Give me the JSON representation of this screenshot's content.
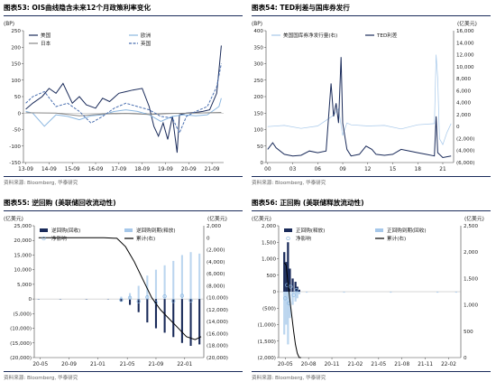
{
  "panels": [
    {
      "id": "p53",
      "title": "图表53:  OIS曲线隐含未来12个月政策利率变化",
      "source": "资料来源: Bloomberg, 华泰研究",
      "chart_data": {
        "type": "line",
        "ylabel": "(BP)",
        "ylim": [
          -150,
          250
        ],
        "y_ticks": [
          -150,
          -100,
          -50,
          0,
          50,
          100,
          150,
          200,
          250
        ],
        "x_ticks": [
          "13-09",
          "14-09",
          "15-09",
          "16-09",
          "17-09",
          "18-09",
          "19-09",
          "20-09",
          "21-09"
        ],
        "legend_position": "top",
        "series": [
          {
            "name": "美国",
            "color": "#1a2b5a",
            "style": "solid",
            "x": [
              2013.7,
              2014.0,
              2014.4,
              2014.7,
              2015.0,
              2015.3,
              2015.7,
              2016.0,
              2016.3,
              2016.7,
              2017.0,
              2017.3,
              2017.7,
              2018.0,
              2018.3,
              2018.7,
              2019.0,
              2019.2,
              2019.4,
              2019.6,
              2019.8,
              2020.0,
              2020.2,
              2020.3,
              2020.6,
              2021.0,
              2021.3,
              2021.6,
              2021.9,
              2022.0,
              2022.1
            ],
            "y": [
              12,
              30,
              50,
              75,
              60,
              90,
              30,
              50,
              25,
              15,
              45,
              35,
              60,
              65,
              70,
              75,
              20,
              -40,
              -70,
              -30,
              -80,
              -10,
              -120,
              -5,
              0,
              2,
              5,
              10,
              60,
              130,
              205
            ]
          },
          {
            "name": "欧洲",
            "color": "#8ab6e0",
            "style": "solid",
            "x": [
              2013.7,
              2014.0,
              2014.5,
              2015.0,
              2015.5,
              2016.0,
              2016.5,
              2017.0,
              2017.5,
              2018.0,
              2018.5,
              2019.0,
              2019.5,
              2020.0,
              2020.5,
              2021.0,
              2021.5,
              2022.0,
              2022.1
            ],
            "y": [
              5,
              0,
              -40,
              -5,
              -10,
              -20,
              -8,
              -5,
              5,
              10,
              5,
              -5,
              -25,
              -10,
              -5,
              -8,
              -5,
              20,
              45
            ]
          },
          {
            "name": "日本",
            "color": "#888888",
            "style": "solid",
            "x": [
              2013.7,
              2015.0,
              2016.0,
              2017.0,
              2018.0,
              2019.0,
              2020.0,
              2021.0,
              2022.1
            ],
            "y": [
              1,
              0,
              -8,
              -3,
              -1,
              -4,
              -1,
              0,
              2
            ]
          },
          {
            "name": "英国",
            "color": "#4a6fb0",
            "style": "dashed",
            "x": [
              2013.7,
              2014.0,
              2014.5,
              2015.0,
              2015.5,
              2016.0,
              2016.5,
              2017.0,
              2017.5,
              2018.0,
              2018.5,
              2019.0,
              2019.5,
              2020.0,
              2020.3,
              2020.6,
              2021.0,
              2021.5,
              2021.9,
              2022.1
            ],
            "y": [
              30,
              50,
              65,
              20,
              30,
              5,
              -30,
              -10,
              15,
              30,
              20,
              10,
              -10,
              -15,
              -60,
              -10,
              5,
              20,
              80,
              150
            ]
          }
        ]
      }
    },
    {
      "id": "p54",
      "title": "图表54:  TED利差与国库券发行",
      "source": "资料来源: Bloomberg, 华泰研究",
      "chart_data": {
        "type": "line",
        "ylabel": "(BP)",
        "ylabel_right": "(亿美元)",
        "ylim": [
          0,
          400
        ],
        "ylim_right": [
          -6000,
          16000
        ],
        "y_ticks": [
          0,
          50,
          100,
          150,
          200,
          250,
          300,
          350,
          400
        ],
        "y_ticks_right": [
          "(6,000)",
          "(4,000)",
          "(2,000)",
          "0",
          "2,000",
          "4,000",
          "6,000",
          "8,000",
          "10,000",
          "12,000",
          "14,000",
          "16,000"
        ],
        "x_ticks": [
          "00",
          "03",
          "06",
          "09",
          "12",
          "15",
          "18",
          "21"
        ],
        "legend_position": "top",
        "series": [
          {
            "name": "美国国库券净发行量(右)",
            "color": "#a6c8ea",
            "axis": "right",
            "x": [
              2000.0,
              2002.0,
              2004.0,
              2006.0,
              2007.5,
              2008.0,
              2008.5,
              2009.0,
              2009.5,
              2010.0,
              2012.0,
              2014.0,
              2016.0,
              2018.0,
              2020.0,
              2020.2,
              2020.4,
              2020.6,
              2021.0,
              2021.5,
              2022.0
            ],
            "y": [
              0,
              200,
              -300,
              100,
              1500,
              2000,
              3000,
              -1500,
              600,
              300,
              100,
              200,
              -400,
              300,
              500,
              12000,
              8000,
              -2000,
              -3000,
              -1000,
              500
            ]
          },
          {
            "name": "TED利差",
            "color": "#1a2b5a",
            "axis": "left",
            "x": [
              2000.0,
              2000.6,
              2001.0,
              2002.0,
              2003.0,
              2004.0,
              2005.0,
              2006.0,
              2007.0,
              2007.6,
              2007.9,
              2008.2,
              2008.5,
              2008.8,
              2009.0,
              2009.5,
              2010.0,
              2011.0,
              2011.8,
              2012.5,
              2013.0,
              2014.0,
              2015.0,
              2016.0,
              2017.0,
              2018.0,
              2019.0,
              2020.0,
              2020.2,
              2020.4,
              2021.0,
              2022.0
            ],
            "y": [
              40,
              60,
              45,
              25,
              20,
              22,
              35,
              30,
              35,
              240,
              140,
              180,
              120,
              320,
              120,
              40,
              20,
              25,
              50,
              40,
              25,
              22,
              25,
              40,
              35,
              30,
              25,
              20,
              140,
              30,
              15,
              20
            ]
          }
        ]
      }
    },
    {
      "id": "p55",
      "title": "图表55:  逆回购 (美联储回收流动性)",
      "source": "资料来源: Bloomberg, 华泰研究",
      "chart_data": {
        "type": "bar",
        "ylabel": "(亿美元)",
        "ylabel_right": "(亿美元)",
        "ylim": [
          -20000,
          25000
        ],
        "ylim_right": [
          -20000,
          2000
        ],
        "y_ticks": [
          "(20,000)",
          "(15,000)",
          "(10,000)",
          "(5,000)",
          "0",
          "5,000",
          "10,000",
          "15,000",
          "20,000",
          "25,000"
        ],
        "y_ticks_right": [
          "(20,000)",
          "(18,000)",
          "(16,000)",
          "(14,000)",
          "(12,000)",
          "(10,000)",
          "(8,000)",
          "(6,000)",
          "(4,000)",
          "(2,000)",
          "0",
          "2,000"
        ],
        "x_ticks": [
          "20-05",
          "20-09",
          "21-01",
          "21-05",
          "21-09",
          "22-01"
        ],
        "legend_position": "top",
        "legend": [
          "逆回购(回收)",
          "逆回购到期(释放)",
          "净影响",
          "累计(右)"
        ],
        "series": [
          {
            "name": "逆回购(回收)",
            "color": "#1a2b5a",
            "x": [
              2020.35,
              2020.6,
              2020.9,
              2021.15,
              2021.3,
              2021.4,
              2021.5,
              2021.6,
              2021.7,
              2021.8,
              2021.9,
              2022.0,
              2022.1,
              2022.2
            ],
            "y": [
              -5,
              -3,
              -2,
              -50,
              -800,
              -2000,
              -4500,
              -8000,
              -10000,
              -11500,
              -13000,
              -15000,
              -16000,
              -15500
            ]
          },
          {
            "name": "逆回购到期(释放)",
            "color": "#a6c8ea",
            "x": [
              2020.35,
              2020.6,
              2020.9,
              2021.15,
              2021.3,
              2021.4,
              2021.5,
              2021.6,
              2021.7,
              2021.8,
              2021.9,
              2022.0,
              2022.1,
              2022.2
            ],
            "y": [
              5,
              3,
              2,
              50,
              800,
              2000,
              4500,
              8000,
              10000,
              11500,
              13000,
              15000,
              16000,
              15500
            ]
          },
          {
            "name": "净影响",
            "color": "#8ab6e0",
            "x": [
              2021.3,
              2021.4,
              2021.5,
              2021.6,
              2021.7,
              2021.8,
              2021.9,
              2022.0,
              2022.1
            ],
            "y": [
              -300,
              400,
              -800,
              600,
              -1200,
              900,
              -700,
              1100,
              -500
            ]
          },
          {
            "name": "累计(右)",
            "color": "#000000",
            "axis": "right",
            "x": [
              2020.35,
              2020.8,
              2021.1,
              2021.25,
              2021.35,
              2021.45,
              2021.55,
              2021.65,
              2021.75,
              2021.85,
              2021.95,
              2022.05,
              2022.15,
              2022.22
            ],
            "y": [
              0,
              0,
              -5,
              -100,
              -1500,
              -4000,
              -7000,
              -10000,
              -12000,
              -13500,
              -15000,
              -16500,
              -17000,
              -16500
            ]
          }
        ]
      }
    },
    {
      "id": "p56",
      "title": "图表56:  正回购 (美联储释放流动性)",
      "source": "资料来源: Bloomberg, 华泰研究",
      "chart_data": {
        "type": "bar",
        "ylabel": "(亿美元)",
        "ylabel_right": "(亿美元)",
        "ylim": [
          -2000,
          2000
        ],
        "ylim_right": [
          0,
          2500
        ],
        "y_ticks": [
          "(2,000)",
          "(1,500)",
          "(1,000)",
          "(500)",
          "0",
          "500",
          "1,000",
          "1,500",
          "2,000"
        ],
        "y_ticks_right": [
          "0",
          "500",
          "1,000",
          "1,500",
          "2,000",
          "2,500"
        ],
        "x_ticks": [
          "20-05",
          "20-08",
          "20-11",
          "21-02",
          "21-05",
          "21-08",
          "21-11",
          "22-02"
        ],
        "legend_position": "top",
        "legend": [
          "正回购(释放)",
          "正回购到期(回收)",
          "净影响",
          "累计(右)"
        ],
        "series": [
          {
            "name": "正回购(释放)",
            "color": "#1a2b5a",
            "x": [
              2020.36,
              2020.38,
              2020.4,
              2020.42,
              2020.45,
              2020.48,
              2020.5,
              2020.52
            ],
            "y": [
              1200,
              900,
              1500,
              700,
              400,
              300,
              150,
              60
            ]
          },
          {
            "name": "正回购到期(回收)",
            "color": "#a6c8ea",
            "x": [
              2020.36,
              2020.38,
              2020.4,
              2020.42,
              2020.45,
              2020.48,
              2020.5,
              2020.52,
              2020.6,
              2021.0,
              2021.5,
              2022.0,
              2022.2
            ],
            "y": [
              -1300,
              -1000,
              -1600,
              -800,
              -400,
              -300,
              -200,
              -80,
              -30,
              -30,
              -30,
              -30,
              -30
            ]
          },
          {
            "name": "净影响",
            "color": "#8ab6e0",
            "x": [
              2020.37,
              2020.39,
              2020.41,
              2020.43,
              2020.46,
              2020.49
            ],
            "y": [
              -200,
              200,
              -350,
              150,
              -100,
              50
            ]
          },
          {
            "name": "累计(右)",
            "color": "#000000",
            "axis": "right",
            "x": [
              2020.36,
              2020.38,
              2020.4,
              2020.42,
              2020.44,
              2020.46,
              2020.48,
              2020.5,
              2020.52,
              2020.54
            ],
            "y": [
              1800,
              1750,
              1400,
              1100,
              800,
              500,
              250,
              80,
              0,
              0
            ]
          }
        ]
      }
    }
  ]
}
